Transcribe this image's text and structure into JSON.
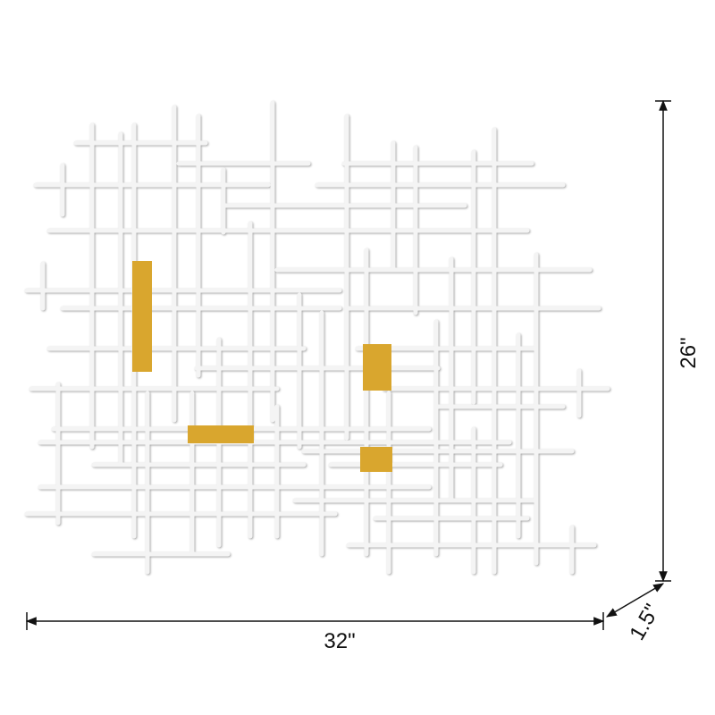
{
  "dimensions": {
    "width": "32\"",
    "height": "26\"",
    "depth": "1.5\""
  }
}
